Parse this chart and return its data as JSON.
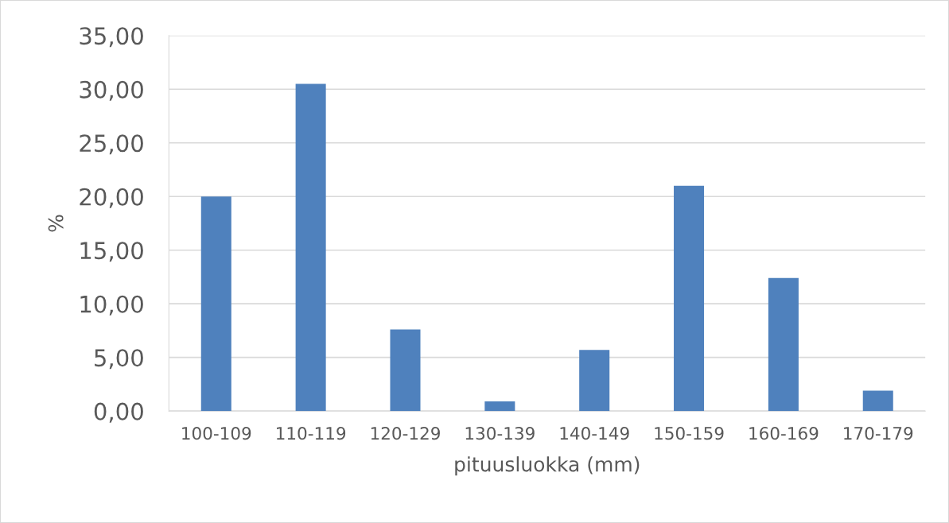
{
  "chart_data": {
    "type": "bar",
    "xlabel": "pituusluokka (mm)",
    "ylabel": "%",
    "categories": [
      "100-109",
      "110-119",
      "120-129",
      "130-139",
      "140-149",
      "150-159",
      "160-169",
      "170-179"
    ],
    "values": [
      20.0,
      30.5,
      7.6,
      0.9,
      5.7,
      21.0,
      12.4,
      1.9
    ],
    "color": "#4f81bd",
    "ylim": [
      0,
      35
    ],
    "yticks": [
      {
        "value": 0,
        "label": "0,00"
      },
      {
        "value": 5,
        "label": "5,00"
      },
      {
        "value": 10,
        "label": "10,00"
      },
      {
        "value": 15,
        "label": "15,00"
      },
      {
        "value": 20,
        "label": "20,00"
      },
      {
        "value": 25,
        "label": "25,00"
      },
      {
        "value": 30,
        "label": "30,00"
      },
      {
        "value": 35,
        "label": "35,00"
      }
    ],
    "grid": "y",
    "legend": false
  }
}
